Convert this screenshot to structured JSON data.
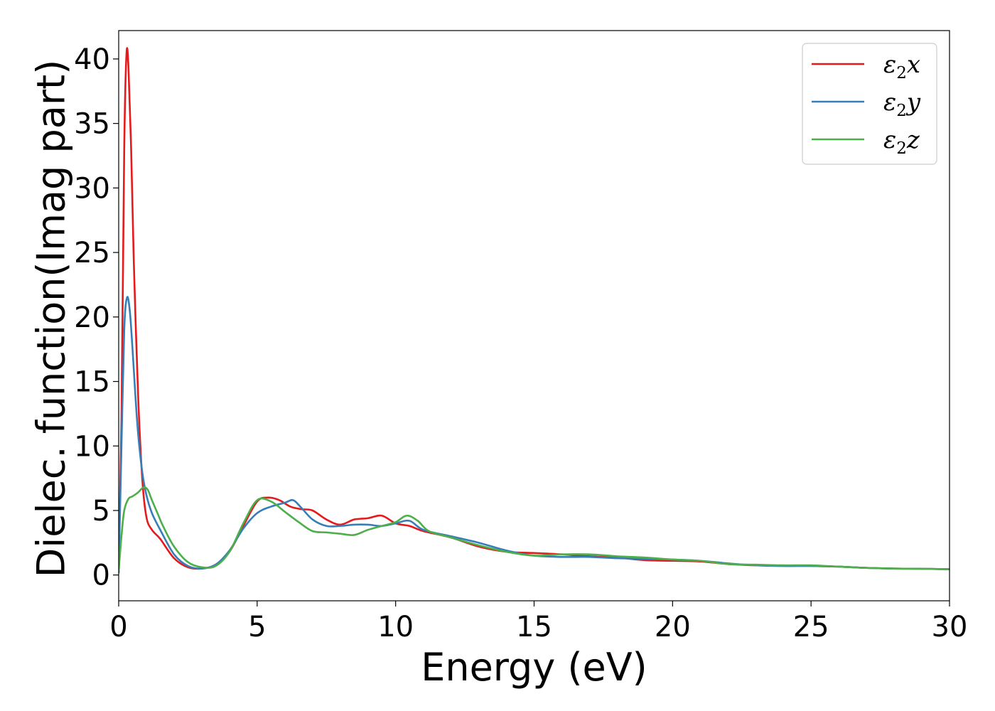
{
  "chart_data": {
    "type": "line",
    "title": "",
    "xlabel": "Energy (eV)",
    "ylabel": "Dielec. function(Imag part)",
    "xlim": [
      0,
      30
    ],
    "ylim": [
      -2,
      42.2
    ],
    "xticks": [
      0,
      5,
      10,
      15,
      20,
      25,
      30
    ],
    "yticks": [
      0,
      5,
      10,
      15,
      20,
      25,
      30,
      35,
      40
    ],
    "grid": false,
    "legend": {
      "position": "top-right"
    },
    "series": [
      {
        "name": "ε2x",
        "label_parts": {
          "symbol": "ε",
          "sub": "2",
          "axis": "x"
        },
        "color": "#e41a1c",
        "x": [
          0,
          0.1,
          0.2,
          0.28,
          0.35,
          0.45,
          0.55,
          0.7,
          0.85,
          1.0,
          1.2,
          1.5,
          2.0,
          2.5,
          3.0,
          3.5,
          4.0,
          4.5,
          5.0,
          5.4,
          5.8,
          6.2,
          6.6,
          7.0,
          7.5,
          8.0,
          8.5,
          9.0,
          9.5,
          10.0,
          10.5,
          11.0,
          12.0,
          13.0,
          14.0,
          15.0,
          16.0,
          17.0,
          18.0,
          19.0,
          20.0,
          21.0,
          22.0,
          23.0,
          24.0,
          25.0,
          26.0,
          27.0,
          28.0,
          29.0,
          30.0
        ],
        "y": [
          0.2,
          12,
          33,
          40.3,
          39.5,
          33,
          24,
          14,
          7.5,
          4.5,
          3.5,
          2.8,
          1.3,
          0.6,
          0.5,
          0.8,
          1.8,
          3.8,
          5.7,
          6.0,
          5.8,
          5.3,
          5.1,
          5.0,
          4.3,
          3.9,
          4.3,
          4.4,
          4.6,
          4.0,
          3.8,
          3.4,
          2.9,
          2.2,
          1.8,
          1.7,
          1.6,
          1.45,
          1.35,
          1.15,
          1.1,
          1.05,
          0.85,
          0.75,
          0.7,
          0.7,
          0.65,
          0.55,
          0.5,
          0.48,
          0.45
        ]
      },
      {
        "name": "ε2y",
        "label_parts": {
          "symbol": "ε",
          "sub": "2",
          "axis": "y"
        },
        "color": "#377eb8",
        "x": [
          0,
          0.1,
          0.2,
          0.3,
          0.4,
          0.5,
          0.6,
          0.7,
          0.85,
          1.0,
          1.2,
          1.5,
          2.0,
          2.5,
          3.0,
          3.5,
          4.0,
          4.5,
          5.0,
          5.5,
          6.0,
          6.3,
          6.6,
          7.0,
          7.5,
          8.0,
          8.5,
          9.0,
          9.5,
          10.0,
          10.5,
          11.0,
          12.0,
          13.0,
          14.0,
          15.0,
          16.0,
          17.0,
          18.0,
          19.0,
          20.0,
          21.0,
          22.0,
          23.0,
          24.0,
          25.0,
          26.0,
          27.0,
          28.0,
          29.0,
          30.0
        ],
        "y": [
          0.2,
          10,
          19,
          21.5,
          20.5,
          17.5,
          14,
          11,
          8,
          6.2,
          4.8,
          3.5,
          1.6,
          0.7,
          0.5,
          0.8,
          1.9,
          3.6,
          4.8,
          5.3,
          5.6,
          5.8,
          5.2,
          4.3,
          3.8,
          3.8,
          3.9,
          3.9,
          3.8,
          4.0,
          4.2,
          3.5,
          3.0,
          2.5,
          1.9,
          1.5,
          1.4,
          1.4,
          1.3,
          1.25,
          1.2,
          1.1,
          0.9,
          0.75,
          0.7,
          0.7,
          0.65,
          0.55,
          0.5,
          0.48,
          0.45
        ]
      },
      {
        "name": "ε2z",
        "label_parts": {
          "symbol": "ε",
          "sub": "2",
          "axis": "z"
        },
        "color": "#4daf4a",
        "x": [
          0,
          0.1,
          0.2,
          0.35,
          0.5,
          0.7,
          0.9,
          1.05,
          1.2,
          1.4,
          1.6,
          2.0,
          2.5,
          3.0,
          3.5,
          4.0,
          4.5,
          5.0,
          5.5,
          6.0,
          6.5,
          7.0,
          7.5,
          8.0,
          8.5,
          9.0,
          9.5,
          10.0,
          10.4,
          10.8,
          11.2,
          12.0,
          13.0,
          14.0,
          15.0,
          16.0,
          17.0,
          18.0,
          19.0,
          20.0,
          21.0,
          22.0,
          23.0,
          24.0,
          25.0,
          26.0,
          27.0,
          28.0,
          29.0,
          30.0
        ],
        "y": [
          0.3,
          3,
          5,
          5.9,
          6.1,
          6.4,
          6.8,
          6.6,
          5.8,
          4.8,
          3.8,
          2.2,
          1.0,
          0.6,
          0.7,
          1.8,
          4.0,
          5.8,
          5.7,
          4.9,
          4.1,
          3.4,
          3.3,
          3.2,
          3.1,
          3.5,
          3.8,
          4.1,
          4.6,
          4.2,
          3.4,
          2.9,
          2.3,
          1.8,
          1.5,
          1.6,
          1.6,
          1.45,
          1.35,
          1.2,
          1.1,
          0.85,
          0.8,
          0.75,
          0.75,
          0.65,
          0.55,
          0.5,
          0.48,
          0.45
        ]
      }
    ]
  }
}
